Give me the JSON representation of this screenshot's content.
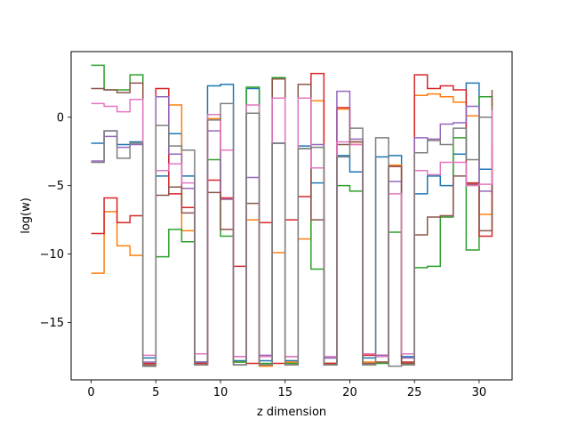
{
  "chart_data": {
    "type": "line",
    "step": "post",
    "title": "",
    "xlabel": "z dimension",
    "ylabel": "log(w)",
    "xlim": [
      -1.55,
      32.55
    ],
    "ylim": [
      -19.2,
      4.8
    ],
    "xticks": [
      0,
      5,
      10,
      15,
      20,
      25,
      30
    ],
    "yticks": [
      -15,
      -10,
      -5,
      0
    ],
    "grid": false,
    "legend": "none",
    "x": [
      0,
      1,
      2,
      3,
      4,
      5,
      6,
      7,
      8,
      9,
      10,
      11,
      12,
      13,
      14,
      15,
      16,
      17,
      18,
      19,
      20,
      21,
      22,
      23,
      24,
      25,
      26,
      27,
      28,
      29,
      30,
      31
    ],
    "series": [
      {
        "color": "#1f77b4",
        "values": [
          -1.9,
          -1.0,
          -2.0,
          -1.8,
          -17.6,
          -4.3,
          -1.2,
          -4.3,
          -17.9,
          2.3,
          2.4,
          -17.8,
          2.1,
          -17.8,
          -1.9,
          -17.8,
          -2.1,
          -4.8,
          -17.6,
          -2.8,
          -4.0,
          -17.6,
          -2.9,
          -2.8,
          -17.5,
          -5.6,
          -4.3,
          -5.0,
          -2.7,
          2.5,
          -3.8,
          -2.5
        ]
      },
      {
        "color": "#ff7f0e",
        "values": [
          -11.4,
          -6.9,
          -9.4,
          -10.1,
          -18.2,
          1.5,
          0.9,
          -8.3,
          -18.1,
          -0.1,
          -6.0,
          -17.9,
          -7.5,
          -18.2,
          -9.9,
          -17.9,
          -8.9,
          1.2,
          -18.0,
          0.6,
          -2.0,
          -17.9,
          -17.9,
          -3.5,
          -18.1,
          1.6,
          1.7,
          1.5,
          1.1,
          0.1,
          -7.1,
          -3.4
        ]
      },
      {
        "color": "#2ca02c",
        "values": [
          3.8,
          2.0,
          2.0,
          3.1,
          -18.2,
          -10.2,
          -8.2,
          -9.1,
          -17.9,
          -3.1,
          -8.7,
          -17.9,
          2.2,
          -18.0,
          2.9,
          -18.0,
          -2.3,
          -11.1,
          -18.0,
          -5.0,
          -5.4,
          -18.1,
          -18.0,
          -8.4,
          -18.0,
          -11.0,
          -10.9,
          -7.3,
          -1.5,
          -9.7,
          1.5,
          0.8
        ]
      },
      {
        "color": "#d62728",
        "values": [
          -8.5,
          -5.9,
          -7.7,
          -7.2,
          -18.0,
          2.1,
          -5.6,
          -6.6,
          -18.0,
          -4.6,
          -5.9,
          -10.9,
          -18.0,
          -7.7,
          -18.0,
          -7.5,
          -5.8,
          3.2,
          -18.0,
          0.7,
          -1.8,
          -17.4,
          -17.4,
          -3.6,
          -17.9,
          3.1,
          2.1,
          2.3,
          2.0,
          -4.8,
          -8.7,
          -2.0
        ]
      },
      {
        "color": "#9467bd",
        "values": [
          -3.2,
          -1.4,
          -2.2,
          -2.0,
          -17.9,
          1.5,
          -2.7,
          -5.2,
          -17.9,
          -1.0,
          -6.0,
          -17.5,
          -4.4,
          -17.4,
          -1.9,
          -17.5,
          -2.3,
          -2.0,
          -17.6,
          1.9,
          -1.6,
          -17.3,
          -17.4,
          -4.7,
          -17.6,
          -1.5,
          -1.6,
          -0.5,
          -0.4,
          0.8,
          -5.4,
          -0.1
        ]
      },
      {
        "color": "#8c564b",
        "values": [
          2.1,
          2.0,
          1.8,
          2.5,
          -18.1,
          -5.7,
          -5.1,
          -7.0,
          -18.1,
          -5.5,
          -8.2,
          -18.1,
          -6.3,
          -18.1,
          2.8,
          -18.1,
          2.4,
          -7.5,
          -18.1,
          -2.0,
          -1.8,
          -18.0,
          -17.9,
          -3.6,
          -18.0,
          -8.6,
          -7.3,
          -7.2,
          -4.3,
          -4.9,
          -8.3,
          2.0
        ]
      },
      {
        "color": "#e377c2",
        "values": [
          1.0,
          0.8,
          0.4,
          1.3,
          -17.4,
          -3.9,
          -3.4,
          -4.8,
          -17.3,
          0.2,
          -2.4,
          -17.5,
          0.9,
          -17.5,
          1.4,
          -17.5,
          1.4,
          -3.7,
          -17.5,
          -1.8,
          -2.0,
          -17.3,
          -17.5,
          -5.6,
          -17.3,
          -3.9,
          -4.2,
          -3.3,
          -3.3,
          -5.0,
          -4.9,
          0.5
        ]
      },
      {
        "color": "#7f7f7f",
        "values": [
          -3.3,
          -1.0,
          -3.0,
          -1.9,
          -18.2,
          -0.6,
          -2.1,
          -2.4,
          -18.1,
          -0.2,
          1.0,
          -18.1,
          0.3,
          -18.1,
          -1.9,
          -18.1,
          -2.3,
          -2.2,
          -18.1,
          -2.9,
          -0.8,
          -18.1,
          -1.5,
          -18.2,
          -18.1,
          -2.6,
          -1.7,
          -2.0,
          -0.8,
          -3.1,
          0.0,
          0.0
        ]
      }
    ]
  }
}
